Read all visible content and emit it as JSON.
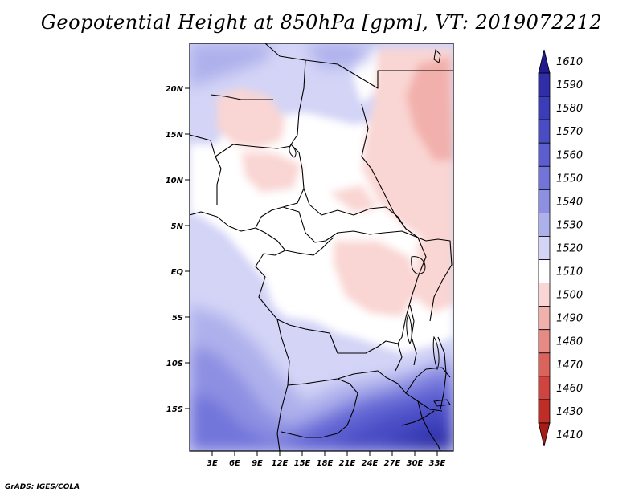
{
  "title": "Geopotential Height at 850hPa [gpm], VT: 2019072212",
  "footer": "GrADS: IGES/COLA",
  "lat_labels": [
    "20N",
    "15N",
    "10N",
    "5N",
    "EQ",
    "5S",
    "10S",
    "15S"
  ],
  "lon_labels": [
    "3E",
    "6E",
    "9E",
    "12E",
    "15E",
    "18E",
    "21E",
    "24E",
    "27E",
    "30E",
    "33E"
  ],
  "colorbar": {
    "levels": [
      "1610",
      "1590",
      "1580",
      "1570",
      "1560",
      "1550",
      "1540",
      "1530",
      "1520",
      "1510",
      "1500",
      "1490",
      "1480",
      "1470",
      "1460",
      "1430",
      "1410"
    ],
    "colors": [
      "#211a91",
      "#2f2ea6",
      "#3a3db7",
      "#4a4cc4",
      "#5c5ed0",
      "#7274da",
      "#8d8fe2",
      "#aeb0ec",
      "#d3d4f6",
      "#ffffff",
      "#f9d5d3",
      "#f2b0ac",
      "#e88a84",
      "#dc625c",
      "#d04440",
      "#c02c26",
      "#a81c16"
    ]
  },
  "chart_data": {
    "type": "heatmap",
    "title": "Geopotential Height at 850hPa [gpm], VT: 2019072212",
    "variable": "Geopotential Height",
    "units": "gpm",
    "pressure_level_hPa": 850,
    "valid_time": "2019072212",
    "x_ticks": [
      "3E",
      "6E",
      "9E",
      "12E",
      "15E",
      "18E",
      "21E",
      "24E",
      "27E",
      "30E",
      "33E"
    ],
    "y_ticks": [
      "20N",
      "15N",
      "10N",
      "5N",
      "EQ",
      "5S",
      "10S",
      "15S"
    ],
    "contour_levels": [
      1410,
      1430,
      1460,
      1470,
      1480,
      1490,
      1500,
      1510,
      1520,
      1530,
      1540,
      1550,
      1560,
      1570,
      1580,
      1590,
      1610
    ]
  }
}
